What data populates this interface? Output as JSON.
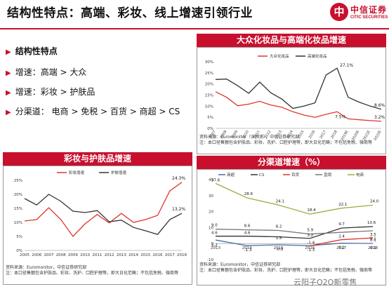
{
  "header": {
    "title": "结构性特点：高端、彩妆、线上增速引领行业",
    "logo_cn": "中信证券",
    "logo_en": "CITIC SECURITIES"
  },
  "left_text": {
    "heading": "结构性特点",
    "bullets": [
      "增速：高端  > 大众",
      "增速：彩妆 > 护肤品",
      "分渠道：  电商 > 免税 > 百货 > 商超 > CS"
    ]
  },
  "watermark": "云阳子O2O新零售",
  "chart_data": [
    {
      "type": "line",
      "title": "大众化妆品与高端化妆品增速",
      "x": [
        "2007",
        "2008",
        "2009",
        "2010",
        "2011",
        "2012",
        "2013",
        "2014",
        "2015",
        "2016",
        "2017",
        "2018",
        "2019E",
        "2020E",
        "2021E",
        "2022E"
      ],
      "series": [
        {
          "name": "大众化妆品",
          "color": "#e0352b",
          "values": [
            16.5,
            14.0,
            10.2,
            10.9,
            12.2,
            10.5,
            9.5,
            7.5,
            6.0,
            5.0,
            6.3,
            7.5,
            4.3,
            3.9,
            3.5,
            3.2
          ]
        },
        {
          "name": "高端化妆品",
          "color": "#333333",
          "values": [
            22.0,
            22.2,
            19.2,
            15.8,
            20.8,
            16.0,
            13.2,
            9.0,
            10.0,
            11.5,
            24.0,
            27.1,
            14.0,
            11.8,
            10.0,
            8.6
          ]
        }
      ],
      "annotations": [
        "27.1%",
        "7.5%",
        "8.6%",
        "3.2%"
      ],
      "ylim": [
        0,
        30
      ],
      "yticks": [
        "0%",
        "5%",
        "10%",
        "15%",
        "20%",
        "25%",
        "30%"
      ],
      "legend": "top-center",
      "source": [
        "资料来源：Euromonitor（含预测），中信证券研究部",
        "注：本口径售额包含护肤品、彩妆、洗护、口腔护理等，即大日化范畴；不包括免税、微商等"
      ]
    },
    {
      "type": "line",
      "title": "彩妆与护肤品增速",
      "x": [
        "2005",
        "2006",
        "2007",
        "2008",
        "2009",
        "2010",
        "2011",
        "2012",
        "2013",
        "2014",
        "2015",
        "2016",
        "2017",
        "2018"
      ],
      "series": [
        {
          "name": "彩妆增速",
          "color": "#e0352b",
          "values": [
            10.5,
            11.0,
            15.2,
            11.0,
            5.0,
            9.5,
            12.8,
            9.8,
            13.2,
            10.0,
            11.0,
            12.5,
            21.2,
            24.3
          ]
        },
        {
          "name": "护肤增速",
          "color": "#333333",
          "values": [
            18.5,
            16.2,
            20.0,
            17.5,
            14.0,
            13.5,
            14.2,
            10.2,
            10.8,
            8.2,
            7.0,
            5.7,
            11.0,
            13.2
          ]
        }
      ],
      "annotations": [
        "24.3%",
        "13.2%"
      ],
      "ylim": [
        0,
        25
      ],
      "yticks": [
        "0%",
        "5%",
        "10%",
        "15%",
        "20%",
        "25%"
      ],
      "legend": "top-center",
      "source": [
        "资料来源：Euromonitor，中信证券研究部",
        "注：本口径售额包含护肤品、彩妆、洗护、口腔护理等，即大日化范畴；不包括免税、微商等"
      ]
    },
    {
      "type": "line",
      "title": "分渠道增速（%）",
      "x": [
        "2013",
        "2014",
        "2015",
        "2016",
        "2017",
        "2018"
      ],
      "series": [
        {
          "name": "商超",
          "color": "#4a6fa5",
          "values": [
            2.2,
            -1.3,
            -0.8,
            -1.3,
            0.2,
            0.1
          ]
        },
        {
          "name": "CS",
          "color": "#333333",
          "values": [
            4.6,
            4.6,
            4.2,
            3.2,
            9.7,
            10.6
          ]
        },
        {
          "name": "百货",
          "color": "#e0352b",
          "values": [
            null,
            null,
            null,
            -1.4,
            2.4,
            3.5
          ]
        },
        {
          "name": "直销",
          "color": "#777777",
          "values": [
            9.0,
            8.6,
            8.2,
            5.9,
            7.0,
            8.0
          ]
        },
        {
          "name": "电商",
          "color": "#9aaf3e",
          "values": [
            37.6,
            28.6,
            24.1,
            18.4,
            22.1,
            24.0
          ]
        }
      ],
      "labels": [
        "37.6",
        "28.6",
        "24.1",
        "18.4",
        "22.1",
        "24.0",
        "9.0",
        "8.6",
        "8.2",
        "5.9",
        "9.7",
        "10.6",
        "4.6",
        "4.6",
        "1.5",
        "3.2",
        "2.4",
        "3.5",
        "2.2",
        "-1.3",
        "-0.8",
        "-1.3",
        "0.2",
        "0.1",
        "-1.4",
        "0.1",
        "1.1"
      ],
      "ylim": [
        -10,
        40
      ],
      "yticks": [
        "-10",
        "0",
        "10",
        "20",
        "30",
        "40"
      ],
      "legend": "top",
      "source": [
        "资料来源：Euromonitor，中信证券研究部",
        "注：本口径售额包含护肤品、彩妆、洗护、口腔护理等，即大日化范畴；不包括免税、微商等"
      ]
    }
  ]
}
